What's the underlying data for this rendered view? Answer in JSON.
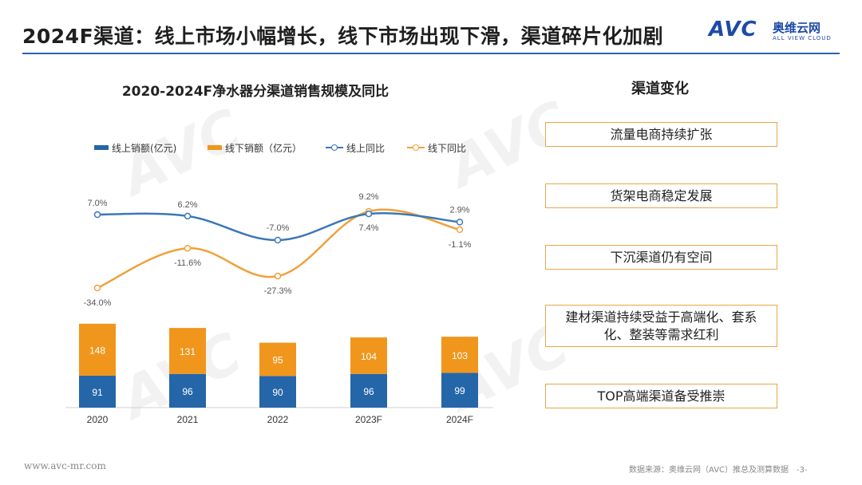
{
  "header": {
    "title": "2024F渠道：线上市场小幅增长，线下市场出现下滑，渠道碎片化加剧",
    "logo_mark": "AVC",
    "logo_cn": "奥维云网",
    "logo_en": "ALL VIEW CLOUD"
  },
  "colors": {
    "accent_blue": "#2a63b0",
    "online_bar": "#2566a8",
    "offline_bar": "#f0961c",
    "online_line": "#3b78b8",
    "offline_line": "#f0a13a",
    "box_border": "#e8a64a"
  },
  "chart_data": {
    "type": "bar",
    "title": "2020-2024F净水器分渠道销售规模及同比",
    "categories": [
      "2020",
      "2021",
      "2022",
      "2023F",
      "2024F"
    ],
    "stacked": true,
    "series": [
      {
        "name": "线上销额(亿元)",
        "kind": "bar",
        "values": [
          91,
          96,
          90,
          96,
          99
        ]
      },
      {
        "name": "线下销额（亿元）",
        "kind": "bar",
        "values": [
          148,
          131,
          95,
          104,
          103
        ]
      },
      {
        "name": "线上同比",
        "kind": "line",
        "values": [
          7.0,
          6.2,
          -7.0,
          7.4,
          2.9
        ],
        "labels": [
          "7.0%",
          "6.2%",
          "-7.0%",
          "7.4%",
          "2.9%"
        ]
      },
      {
        "name": "线下同比",
        "kind": "line",
        "values": [
          -34.0,
          -11.6,
          -27.3,
          9.2,
          -1.1
        ],
        "labels": [
          "-34.0%",
          "-11.6%",
          "-27.3%",
          "9.2%",
          "-1.1%"
        ]
      }
    ],
    "legend_position": "top",
    "grid": false
  },
  "channel_panel": {
    "title": "渠道变化",
    "items": [
      "流量电商持续扩张",
      "货架电商稳定发展",
      "下沉渠道仍有空间",
      "建材渠道持续受益于高端化、套系化、整装等需求红利",
      "TOP高端渠道备受推崇"
    ]
  },
  "footer": {
    "website": "www.avc-mr.com",
    "source": "数据来源：奥维云网（AVC）推总及测算数据",
    "page": "-3-"
  }
}
